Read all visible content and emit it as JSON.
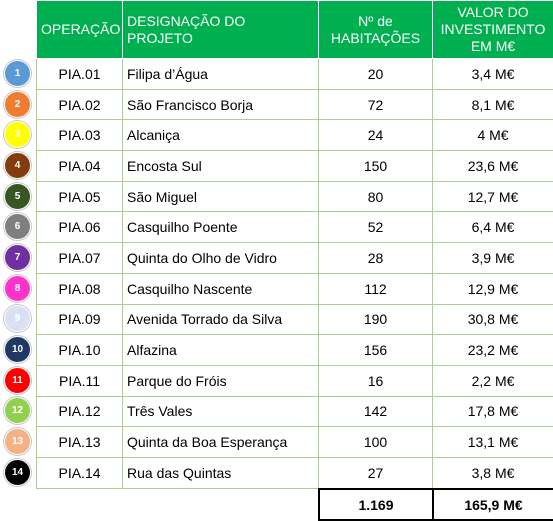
{
  "headers": {
    "operation": "OPERAÇÃO",
    "project": "DESIGNAÇÃO DO PROJETO",
    "dwellings": "Nº de HABITAÇÕES",
    "investment": "VALOR DO INVESTIMENTO EM M€"
  },
  "rows": [
    {
      "marker": "1",
      "color": "#5b9bd5",
      "op": "PIA.01",
      "name": "Filipa d’Água",
      "dwellings": "20",
      "value": "3,4 M€"
    },
    {
      "marker": "2",
      "color": "#ed7d31",
      "op": "PIA.02",
      "name": "São Francisco Borja",
      "dwellings": "72",
      "value": "8,1 M€"
    },
    {
      "marker": "3",
      "color": "#ffff00",
      "op": "PIA.03",
      "name": "Alcaniça",
      "dwellings": "24",
      "value": "4 M€"
    },
    {
      "marker": "4",
      "color": "#843c0c",
      "op": "PIA.04",
      "name": "Encosta Sul",
      "dwellings": "150",
      "value": "23,6 M€"
    },
    {
      "marker": "5",
      "color": "#375623",
      "op": "PIA.05",
      "name": "São Miguel",
      "dwellings": "80",
      "value": "12,7 M€"
    },
    {
      "marker": "6",
      "color": "#7f7f7f",
      "op": "PIA.06",
      "name": "Casquilho Poente",
      "dwellings": "52",
      "value": "6,4 M€"
    },
    {
      "marker": "7",
      "color": "#7030a0",
      "op": "PIA.07",
      "name": "Quinta do Olho de Vidro",
      "dwellings": "28",
      "value": "3,9 M€"
    },
    {
      "marker": "8",
      "color": "#ff33cc",
      "op": "PIA.08",
      "name": "Casquilho Nascente",
      "dwellings": "112",
      "value": "12,9 M€"
    },
    {
      "marker": "9",
      "color": "#d9e1f2",
      "op": "PIA.09",
      "name": "Avenida Torrado da Silva",
      "dwellings": "190",
      "value": "30,8 M€"
    },
    {
      "marker": "10",
      "color": "#1f3864",
      "op": "PIA.10",
      "name": "Alfazina",
      "dwellings": "156",
      "value": "23,2 M€"
    },
    {
      "marker": "11",
      "color": "#ff0000",
      "op": "PIA.11",
      "name": "Parque do Fróis",
      "dwellings": "16",
      "value": "2,2 M€"
    },
    {
      "marker": "12",
      "color": "#92d050",
      "op": "PIA.12",
      "name": "Três Vales",
      "dwellings": "142",
      "value": "17,8 M€"
    },
    {
      "marker": "13",
      "color": "#f4b183",
      "op": "PIA.13",
      "name": "Quinta da Boa Esperança",
      "dwellings": "100",
      "value": "13,1 M€"
    },
    {
      "marker": "14",
      "color": "#000000",
      "op": "PIA.14",
      "name": "Rua das Quintas",
      "dwellings": "27",
      "value": "3,8 M€"
    }
  ],
  "totals": {
    "dwellings": "1.169",
    "value": "165,9 M€"
  }
}
